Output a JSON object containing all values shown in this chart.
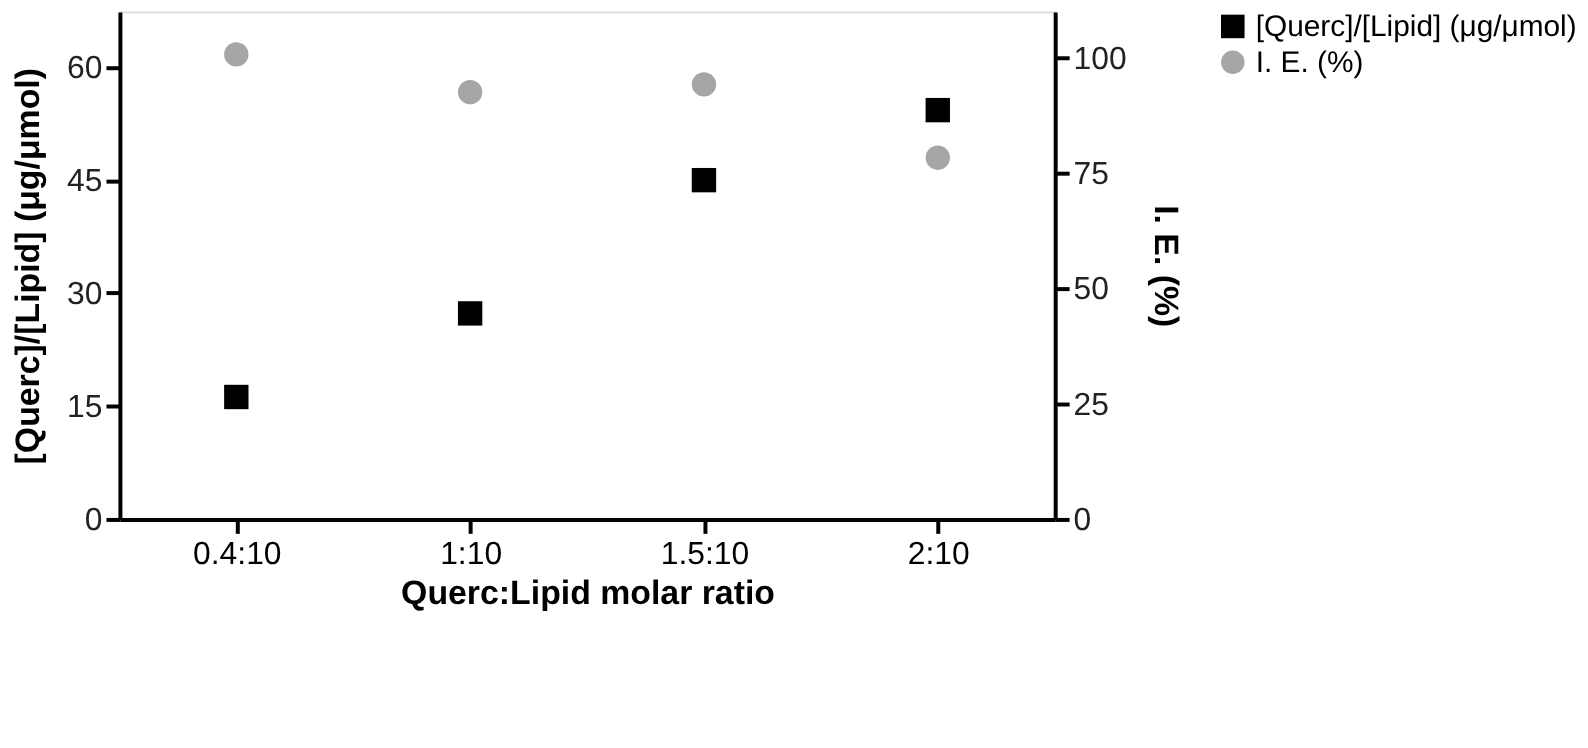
{
  "chart_data": {
    "type": "scatter",
    "xlabel": "Querc:Lipid molar ratio",
    "ylabel": "[Querc]/[Lipid] (μg/μmol)",
    "y2label": "I. E. (%)",
    "categories": [
      "0.4:10",
      "1:10",
      "1.5:10",
      "2:10"
    ],
    "series": [
      {
        "name": "[Querc]/[Lipid] (μg/μmol)",
        "color": "#000000",
        "marker": "square",
        "values": [
          16.2,
          27.3,
          45.0,
          54.3
        ]
      },
      {
        "name": "I. E. (%)",
        "color": "#a6a6a6",
        "marker": "circle",
        "axis": "y2",
        "values": [
          100.7,
          92.5,
          94.2,
          78.3
        ]
      }
    ],
    "ylim": [
      0,
      67.4
    ],
    "yticks": [
      0,
      15,
      30,
      45,
      60
    ],
    "y2lim": [
      0,
      110
    ],
    "y2ticks": [
      0,
      25,
      50,
      75,
      100
    ],
    "grid": false,
    "legend": "right"
  }
}
